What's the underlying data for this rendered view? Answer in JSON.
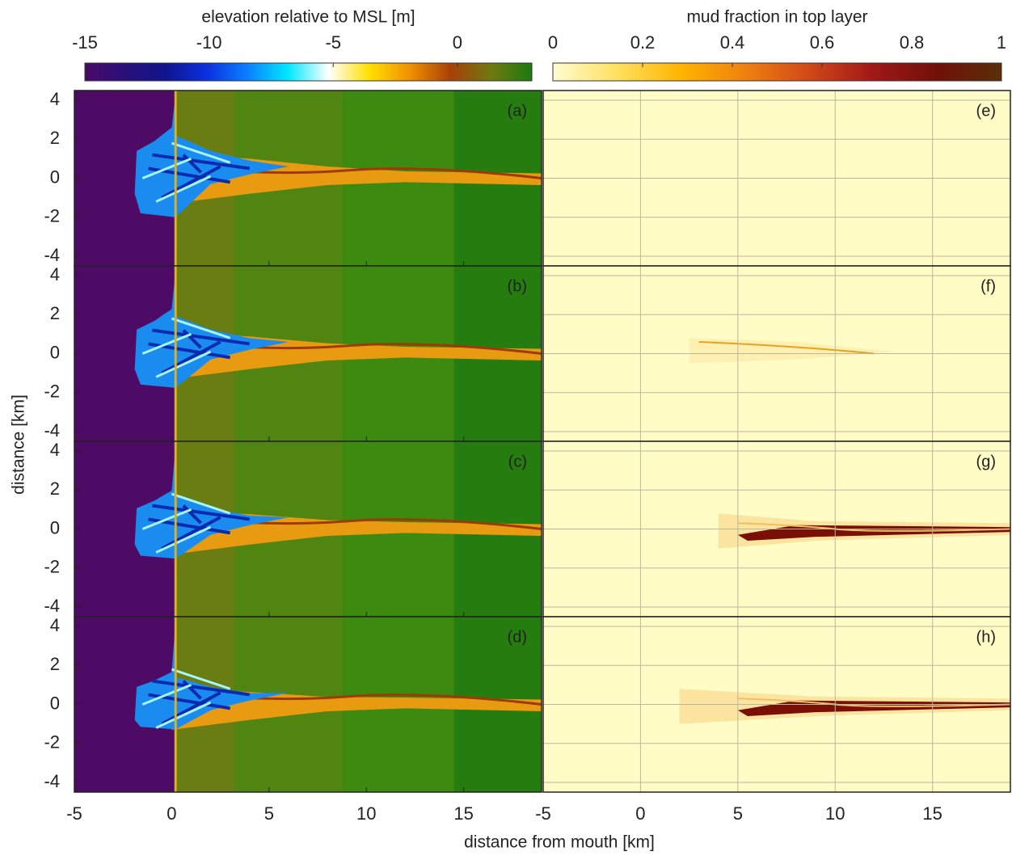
{
  "figure": {
    "xlabel": "distance from mouth [km]",
    "ylabel": "distance [km]"
  },
  "chart_data": [
    {
      "type": "colorbar",
      "title": "elevation relative to MSL [m]",
      "xlim": [
        -15,
        3
      ],
      "xticks": [
        -15,
        -10,
        -5,
        0
      ],
      "colormap": [
        "#4a0a68",
        "#2a0f7a",
        "#10148e",
        "#0a30e0",
        "#0a80ff",
        "#00e8ff",
        "#ffffff",
        "#ffe000",
        "#f09000",
        "#a84008",
        "#6e7a10",
        "#1a7a10"
      ]
    },
    {
      "type": "colorbar",
      "title": "mud fraction in top layer",
      "xlim": [
        0,
        1
      ],
      "xticks": [
        0,
        0.2,
        0.4,
        0.6,
        0.8,
        1
      ],
      "colormap": [
        "#fffcd0",
        "#ffe060",
        "#ffb400",
        "#f08010",
        "#d04818",
        "#a01818",
        "#701008",
        "#5a3008"
      ]
    },
    {
      "type": "heatmap",
      "field": "elevation",
      "label": "(a)",
      "xlim": [
        -5,
        19
      ],
      "ylim": [
        -4.5,
        4.5
      ],
      "xticks": [
        -5,
        0,
        5,
        10,
        15
      ],
      "yticks": [
        4,
        2,
        0,
        -2,
        -4
      ],
      "grid": false
    },
    {
      "type": "heatmap",
      "field": "elevation",
      "label": "(b)",
      "xlim": [
        -5,
        19
      ],
      "ylim": [
        -4.5,
        4.5
      ],
      "xticks": [
        -5,
        0,
        5,
        10,
        15
      ],
      "yticks": [
        4,
        2,
        0,
        -2,
        -4
      ],
      "grid": false
    },
    {
      "type": "heatmap",
      "field": "elevation",
      "label": "(c)",
      "xlim": [
        -5,
        19
      ],
      "ylim": [
        -4.5,
        4.5
      ],
      "xticks": [
        -5,
        0,
        5,
        10,
        15
      ],
      "yticks": [
        4,
        2,
        0,
        -2,
        -4
      ],
      "grid": false
    },
    {
      "type": "heatmap",
      "field": "elevation",
      "label": "(d)",
      "xlim": [
        -5,
        19
      ],
      "ylim": [
        -4.5,
        4.5
      ],
      "xticks": [
        -5,
        0,
        5,
        10,
        15
      ],
      "yticks": [
        4,
        2,
        0,
        -2,
        -4
      ],
      "grid": false
    },
    {
      "type": "heatmap",
      "field": "mud",
      "label": "(e)",
      "xlim": [
        -5,
        19
      ],
      "ylim": [
        -4.5,
        4.5
      ],
      "xticks": [
        -5,
        0,
        5,
        10,
        15
      ],
      "yticks": [
        4,
        2,
        0,
        -2,
        -4
      ],
      "grid": true
    },
    {
      "type": "heatmap",
      "field": "mud",
      "label": "(f)",
      "xlim": [
        -5,
        19
      ],
      "ylim": [
        -4.5,
        4.5
      ],
      "xticks": [
        -5,
        0,
        5,
        10,
        15
      ],
      "yticks": [
        4,
        2,
        0,
        -2,
        -4
      ],
      "grid": true
    },
    {
      "type": "heatmap",
      "field": "mud",
      "label": "(g)",
      "xlim": [
        -5,
        19
      ],
      "ylim": [
        -4.5,
        4.5
      ],
      "xticks": [
        -5,
        0,
        5,
        10,
        15
      ],
      "yticks": [
        4,
        2,
        0,
        -2,
        -4
      ],
      "grid": true
    },
    {
      "type": "heatmap",
      "field": "mud",
      "label": "(h)",
      "xlim": [
        -5,
        19
      ],
      "ylim": [
        -4.5,
        4.5
      ],
      "xticks": [
        -5,
        0,
        5,
        10,
        15
      ],
      "yticks": [
        4,
        2,
        0,
        -2,
        -4
      ],
      "grid": true
    }
  ]
}
